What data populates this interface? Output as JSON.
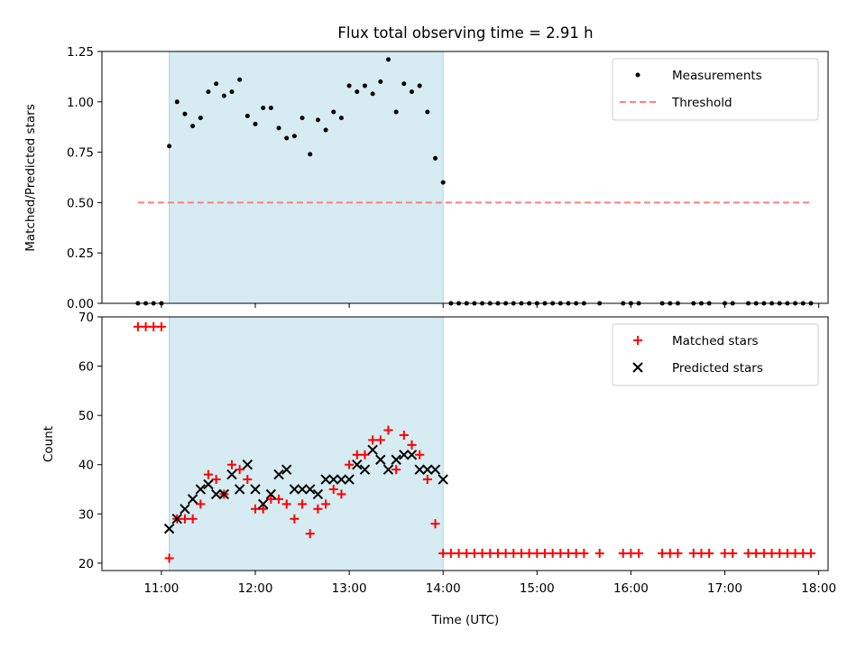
{
  "chart_data": [
    {
      "type": "scatter",
      "title": "Flux total observing time = 2.91 h",
      "xlabel": "",
      "ylabel": "Matched/Predicted stars",
      "ylim": [
        0,
        1.25
      ],
      "yticks": [
        "0.00",
        "0.25",
        "0.50",
        "0.75",
        "1.00",
        "1.25"
      ],
      "xlim": [
        "10:22",
        "18:06"
      ],
      "xticks": [
        "11:00",
        "12:00",
        "13:00",
        "14:00",
        "15:00",
        "16:00",
        "17:00",
        "18:00"
      ],
      "x_tick_labels_shown": false,
      "highlight_span": {
        "from": "11:05",
        "to": "14:00",
        "color": "#add8e6"
      },
      "legend_position": "top-right",
      "series": [
        {
          "name": "Measurements",
          "marker": "dot",
          "color": "#000000",
          "x": [
            "10:45",
            "10:50",
            "10:55",
            "11:00",
            "11:05",
            "11:10",
            "11:15",
            "11:20",
            "11:25",
            "11:30",
            "11:35",
            "11:40",
            "11:45",
            "11:50",
            "11:55",
            "12:00",
            "12:05",
            "12:10",
            "12:15",
            "12:20",
            "12:25",
            "12:30",
            "12:35",
            "12:40",
            "12:45",
            "12:50",
            "12:55",
            "13:00",
            "13:05",
            "13:10",
            "13:15",
            "13:20",
            "13:25",
            "13:30",
            "13:35",
            "13:40",
            "13:45",
            "13:50",
            "13:55",
            "14:00",
            "14:05",
            "14:10",
            "14:15",
            "14:20",
            "14:25",
            "14:30",
            "14:35",
            "14:40",
            "14:45",
            "14:50",
            "14:55",
            "15:00",
            "15:05",
            "15:10",
            "15:15",
            "15:20",
            "15:25",
            "15:30",
            "15:40",
            "15:55",
            "16:00",
            "16:05",
            "16:20",
            "16:25",
            "16:30",
            "16:40",
            "16:45",
            "16:50",
            "17:00",
            "17:05",
            "17:15",
            "17:20",
            "17:25",
            "17:30",
            "17:35",
            "17:40",
            "17:45",
            "17:50",
            "17:55"
          ],
          "values": [
            0,
            0,
            0,
            0,
            0.78,
            1.0,
            0.94,
            0.88,
            0.92,
            1.05,
            1.09,
            1.03,
            1.05,
            1.11,
            0.93,
            0.89,
            0.97,
            0.97,
            0.87,
            0.82,
            0.83,
            0.92,
            0.74,
            0.91,
            0.86,
            0.95,
            0.92,
            1.08,
            1.05,
            1.08,
            1.04,
            1.1,
            1.21,
            0.95,
            1.09,
            1.05,
            1.08,
            0.95,
            0.72,
            0.6,
            0,
            0,
            0,
            0,
            0,
            0,
            0,
            0,
            0,
            0,
            0,
            0,
            0,
            0,
            0,
            0,
            0,
            0,
            0,
            0,
            0,
            0,
            0,
            0,
            0,
            0,
            0,
            0,
            0,
            0,
            0,
            0,
            0,
            0,
            0,
            0,
            0,
            0,
            0
          ]
        },
        {
          "name": "Threshold",
          "marker": "dashed-line",
          "color": "#ff7f7f",
          "x": [
            "10:45",
            "17:55"
          ],
          "values": [
            0.5,
            0.5
          ]
        }
      ]
    },
    {
      "type": "scatter",
      "title": "",
      "xlabel": "Time (UTC)",
      "ylabel": "Count",
      "ylim": [
        18.5,
        70
      ],
      "yticks": [
        "20",
        "30",
        "40",
        "50",
        "60",
        "70"
      ],
      "xlim": [
        "10:22",
        "18:06"
      ],
      "xticks": [
        "11:00",
        "12:00",
        "13:00",
        "14:00",
        "15:00",
        "16:00",
        "17:00",
        "18:00"
      ],
      "x_tick_labels_shown": true,
      "highlight_span": {
        "from": "11:05",
        "to": "14:00",
        "color": "#add8e6"
      },
      "legend_position": "top-right",
      "series": [
        {
          "name": "Matched stars",
          "marker": "plus",
          "color": "#ff0000",
          "x": [
            "10:45",
            "10:50",
            "10:55",
            "11:00",
            "11:05",
            "11:10",
            "11:15",
            "11:20",
            "11:25",
            "11:30",
            "11:35",
            "11:40",
            "11:45",
            "11:50",
            "11:55",
            "12:00",
            "12:05",
            "12:10",
            "12:15",
            "12:20",
            "12:25",
            "12:30",
            "12:35",
            "12:40",
            "12:45",
            "12:50",
            "12:55",
            "13:00",
            "13:05",
            "13:10",
            "13:15",
            "13:20",
            "13:25",
            "13:30",
            "13:35",
            "13:40",
            "13:45",
            "13:50",
            "13:55",
            "14:00",
            "14:05",
            "14:10",
            "14:15",
            "14:20",
            "14:25",
            "14:30",
            "14:35",
            "14:40",
            "14:45",
            "14:50",
            "14:55",
            "15:00",
            "15:05",
            "15:10",
            "15:15",
            "15:20",
            "15:25",
            "15:30",
            "15:40",
            "15:55",
            "16:00",
            "16:05",
            "16:20",
            "16:25",
            "16:30",
            "16:40",
            "16:45",
            "16:50",
            "17:00",
            "17:05",
            "17:15",
            "17:20",
            "17:25",
            "17:30",
            "17:35",
            "17:40",
            "17:45",
            "17:50",
            "17:55"
          ],
          "values": [
            68,
            68,
            68,
            68,
            21,
            29,
            29,
            29,
            32,
            38,
            37,
            34,
            40,
            39,
            37,
            31,
            31,
            33,
            33,
            32,
            29,
            32,
            26,
            31,
            32,
            35,
            34,
            40,
            42,
            42,
            45,
            45,
            47,
            39,
            46,
            44,
            42,
            37,
            28,
            22,
            22,
            22,
            22,
            22,
            22,
            22,
            22,
            22,
            22,
            22,
            22,
            22,
            22,
            22,
            22,
            22,
            22,
            22,
            22,
            22,
            22,
            22,
            22,
            22,
            22,
            22,
            22,
            22,
            22,
            22,
            22,
            22,
            22,
            22,
            22,
            22,
            22,
            22,
            22
          ]
        },
        {
          "name": "Predicted stars",
          "marker": "x",
          "color": "#000000",
          "x": [
            "11:05",
            "11:10",
            "11:15",
            "11:20",
            "11:25",
            "11:30",
            "11:35",
            "11:40",
            "11:45",
            "11:50",
            "11:55",
            "12:00",
            "12:05",
            "12:10",
            "12:15",
            "12:20",
            "12:25",
            "12:30",
            "12:35",
            "12:40",
            "12:45",
            "12:50",
            "12:55",
            "13:00",
            "13:05",
            "13:10",
            "13:15",
            "13:20",
            "13:25",
            "13:30",
            "13:35",
            "13:40",
            "13:45",
            "13:50",
            "13:55",
            "14:00"
          ],
          "values": [
            27,
            29,
            31,
            33,
            35,
            36,
            34,
            34,
            38,
            35,
            40,
            35,
            32,
            34,
            38,
            39,
            35,
            35,
            35,
            34,
            37,
            37,
            37,
            37,
            40,
            39,
            43,
            41,
            39,
            41,
            42,
            42,
            39,
            39,
            39,
            37
          ]
        }
      ]
    }
  ]
}
